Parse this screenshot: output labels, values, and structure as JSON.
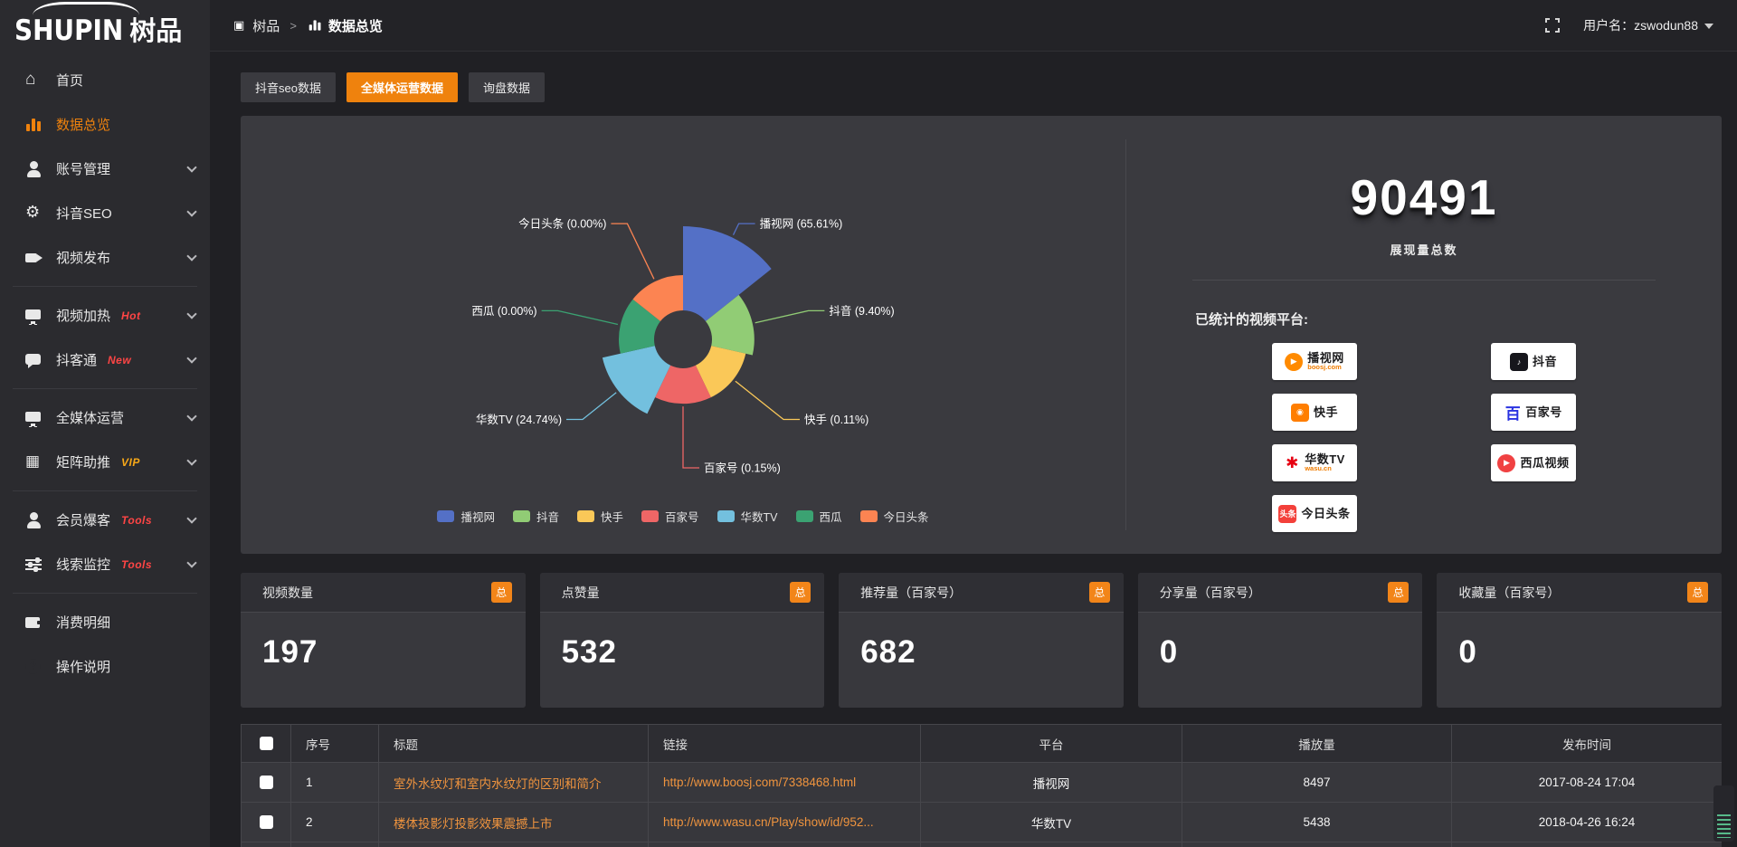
{
  "app": {
    "logo_en": "SHUPIN",
    "logo_cn": "树品"
  },
  "header": {
    "crumb_root": "树品",
    "crumb_current": "数据总览",
    "user_label": "用户名：zswodun88"
  },
  "tabs": [
    {
      "key": "douyin-seo-data",
      "label": "抖音seo数据",
      "active": false
    },
    {
      "key": "omnimedia-data",
      "label": "全媒体运营数据",
      "active": true
    },
    {
      "key": "inquiry-data",
      "label": "询盘数据",
      "active": false
    }
  ],
  "sidebar": {
    "items": [
      {
        "key": "home",
        "icon": "home",
        "label": "首页"
      },
      {
        "key": "data-overview",
        "icon": "bars",
        "label": "数据总览",
        "active": true
      },
      {
        "key": "account-management",
        "icon": "person",
        "label": "账号管理",
        "chevron": true
      },
      {
        "key": "douyin-seo",
        "icon": "gear",
        "label": "抖音SEO",
        "chevron": true
      },
      {
        "key": "video-publish",
        "icon": "video",
        "label": "视频发布",
        "chevron": true
      },
      {
        "divider": true
      },
      {
        "key": "video-heating",
        "icon": "screen",
        "label": "视频加热",
        "badge": {
          "text": "Hot",
          "color": "#ff4545"
        },
        "chevron": true
      },
      {
        "key": "douketong",
        "icon": "chat",
        "label": "抖客通",
        "badge": {
          "text": "New",
          "color": "#ff4545"
        },
        "chevron": true
      },
      {
        "divider": true
      },
      {
        "key": "omnimedia-operation",
        "icon": "monitor",
        "label": "全媒体运营",
        "chevron": true
      },
      {
        "key": "matrix-boost",
        "icon": "grid",
        "label": "矩阵助推",
        "badge": {
          "text": "VIP",
          "color": "#f7a818"
        },
        "chevron": true
      },
      {
        "divider": true
      },
      {
        "key": "member-baoke",
        "icon": "person",
        "label": "会员爆客",
        "badge": {
          "text": "Tools",
          "color": "#ff4545"
        },
        "chevron": true
      },
      {
        "key": "lead-monitor",
        "icon": "sliders",
        "label": "线索监控",
        "badge": {
          "text": "Tools",
          "color": "#ff4545"
        },
        "chevron": true
      },
      {
        "divider": true
      },
      {
        "key": "consumption-detail",
        "icon": "wallet",
        "label": "消费明细"
      },
      {
        "key": "operation-guide",
        "icon": "question",
        "label": "操作说明"
      }
    ]
  },
  "chart_data": {
    "type": "pie",
    "subtype": "nightingale-rose",
    "label_format": "{name} ({percent}%)",
    "legend_position": "bottom",
    "items": [
      {
        "id": "boosj",
        "name": "播视网",
        "percent": 65.61,
        "color": "#5470c6"
      },
      {
        "id": "douyin",
        "name": "抖音",
        "percent": 9.4,
        "color": "#91cc75"
      },
      {
        "id": "kuaishou",
        "name": "快手",
        "percent": 0.11,
        "color": "#fac858"
      },
      {
        "id": "baijiahao",
        "name": "百家号",
        "percent": 0.15,
        "color": "#ee6666"
      },
      {
        "id": "wasu",
        "name": "华数TV",
        "percent": 24.74,
        "color": "#73c0de"
      },
      {
        "id": "xigua",
        "name": "西瓜",
        "percent": 0.0,
        "color": "#3ba272"
      },
      {
        "id": "toutiao",
        "name": "今日头条",
        "percent": 0.0,
        "color": "#fc8452"
      }
    ]
  },
  "summary": {
    "total_value": "90491",
    "total_label": "展现量总数",
    "platforms_label": "已统计的视频平台:",
    "platforms": [
      {
        "id": "boosj",
        "name": "播视网",
        "sub": "boosj.com",
        "icon_color": "#ff8a00",
        "icon_glyph": "▶",
        "icon_shape": "round"
      },
      {
        "id": "douyin",
        "name": "抖音",
        "icon_color": "#16161c",
        "icon_glyph": "♪",
        "icon_shape": "square"
      },
      {
        "id": "kuaishou",
        "name": "快手",
        "icon_color": "#ff7e00",
        "icon_glyph": "◉",
        "icon_shape": "square"
      },
      {
        "id": "baijiahao",
        "name": "百家号",
        "icon_color": "#2932e1",
        "icon_glyph": "百",
        "icon_shape": "bare"
      },
      {
        "id": "wasu",
        "name": "华数TV",
        "sub": "wasu.cn",
        "icon_color": "#e60012",
        "icon_glyph": "✱",
        "icon_shape": "bare"
      },
      {
        "id": "xigua",
        "name": "西瓜视频",
        "icon_color": "#f04142",
        "icon_glyph": "▶",
        "icon_shape": "round"
      },
      {
        "id": "toutiao",
        "name": "今日头条",
        "icon_color": "#f3403a",
        "icon_glyph": "头条",
        "icon_shape": "square"
      }
    ]
  },
  "stat_cards": [
    {
      "key": "video-count",
      "label": "视频数量",
      "badge": "总",
      "value": "197"
    },
    {
      "key": "like-count",
      "label": "点赞量",
      "badge": "总",
      "value": "532"
    },
    {
      "key": "recommend-count",
      "label": "推荐量（百家号）",
      "badge": "总",
      "value": "682"
    },
    {
      "key": "share-count",
      "label": "分享量（百家号）",
      "badge": "总",
      "value": "0"
    },
    {
      "key": "favorite-count",
      "label": "收藏量（百家号）",
      "badge": "总",
      "value": "0"
    }
  ],
  "table": {
    "headers": {
      "no": "序号",
      "title": "标题",
      "link": "链接",
      "platform": "平台",
      "plays": "播放量",
      "time": "发布时间"
    },
    "rows": [
      {
        "no": "1",
        "title": "室外水纹灯和室内水纹灯的区别和简介",
        "link": "http://www.boosj.com/7338468.html",
        "platform": "播视网",
        "plays": "8497",
        "time": "2017-08-24 17:04"
      },
      {
        "no": "2",
        "title": "楼体投影灯投影效果震撼上市",
        "link": "http://www.wasu.cn/Play/show/id/952...",
        "platform": "华数TV",
        "plays": "5438",
        "time": "2018-04-26 16:24"
      },
      {
        "no": "",
        "title": "",
        "link": "",
        "platform": "",
        "plays": "",
        "time": ""
      }
    ]
  }
}
